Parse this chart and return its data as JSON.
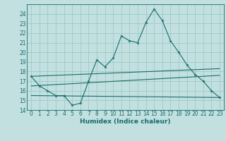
{
  "xlabel": "Humidex (Indice chaleur)",
  "bg_color": "#c2e0e0",
  "grid_color": "#9fc8c8",
  "line_color": "#1a6b6b",
  "xlim": [
    -0.5,
    23.5
  ],
  "ylim": [
    14,
    25
  ],
  "yticks": [
    14,
    15,
    16,
    17,
    18,
    19,
    20,
    21,
    22,
    23,
    24
  ],
  "xticks": [
    0,
    1,
    2,
    3,
    4,
    5,
    6,
    7,
    8,
    9,
    10,
    11,
    12,
    13,
    14,
    15,
    16,
    17,
    18,
    19,
    20,
    21,
    22,
    23
  ],
  "main_x": [
    0,
    1,
    2,
    3,
    4,
    5,
    6,
    7,
    8,
    9,
    10,
    11,
    12,
    13,
    14,
    15,
    16,
    17,
    18,
    19,
    20,
    21,
    22,
    23
  ],
  "main_y": [
    17.5,
    16.5,
    16.0,
    15.5,
    15.5,
    14.5,
    14.7,
    17.0,
    19.2,
    18.5,
    19.4,
    21.7,
    21.2,
    21.0,
    23.1,
    24.5,
    23.3,
    21.2,
    20.0,
    18.7,
    17.7,
    17.0,
    16.0,
    15.3
  ],
  "line1_x": [
    0,
    23
  ],
  "line1_y": [
    17.5,
    18.3
  ],
  "line2_x": [
    0,
    23
  ],
  "line2_y": [
    16.5,
    17.6
  ],
  "line3_x": [
    0,
    23
  ],
  "line3_y": [
    15.5,
    15.3
  ],
  "tick_fontsize": 5.5,
  "xlabel_fontsize": 6.5
}
